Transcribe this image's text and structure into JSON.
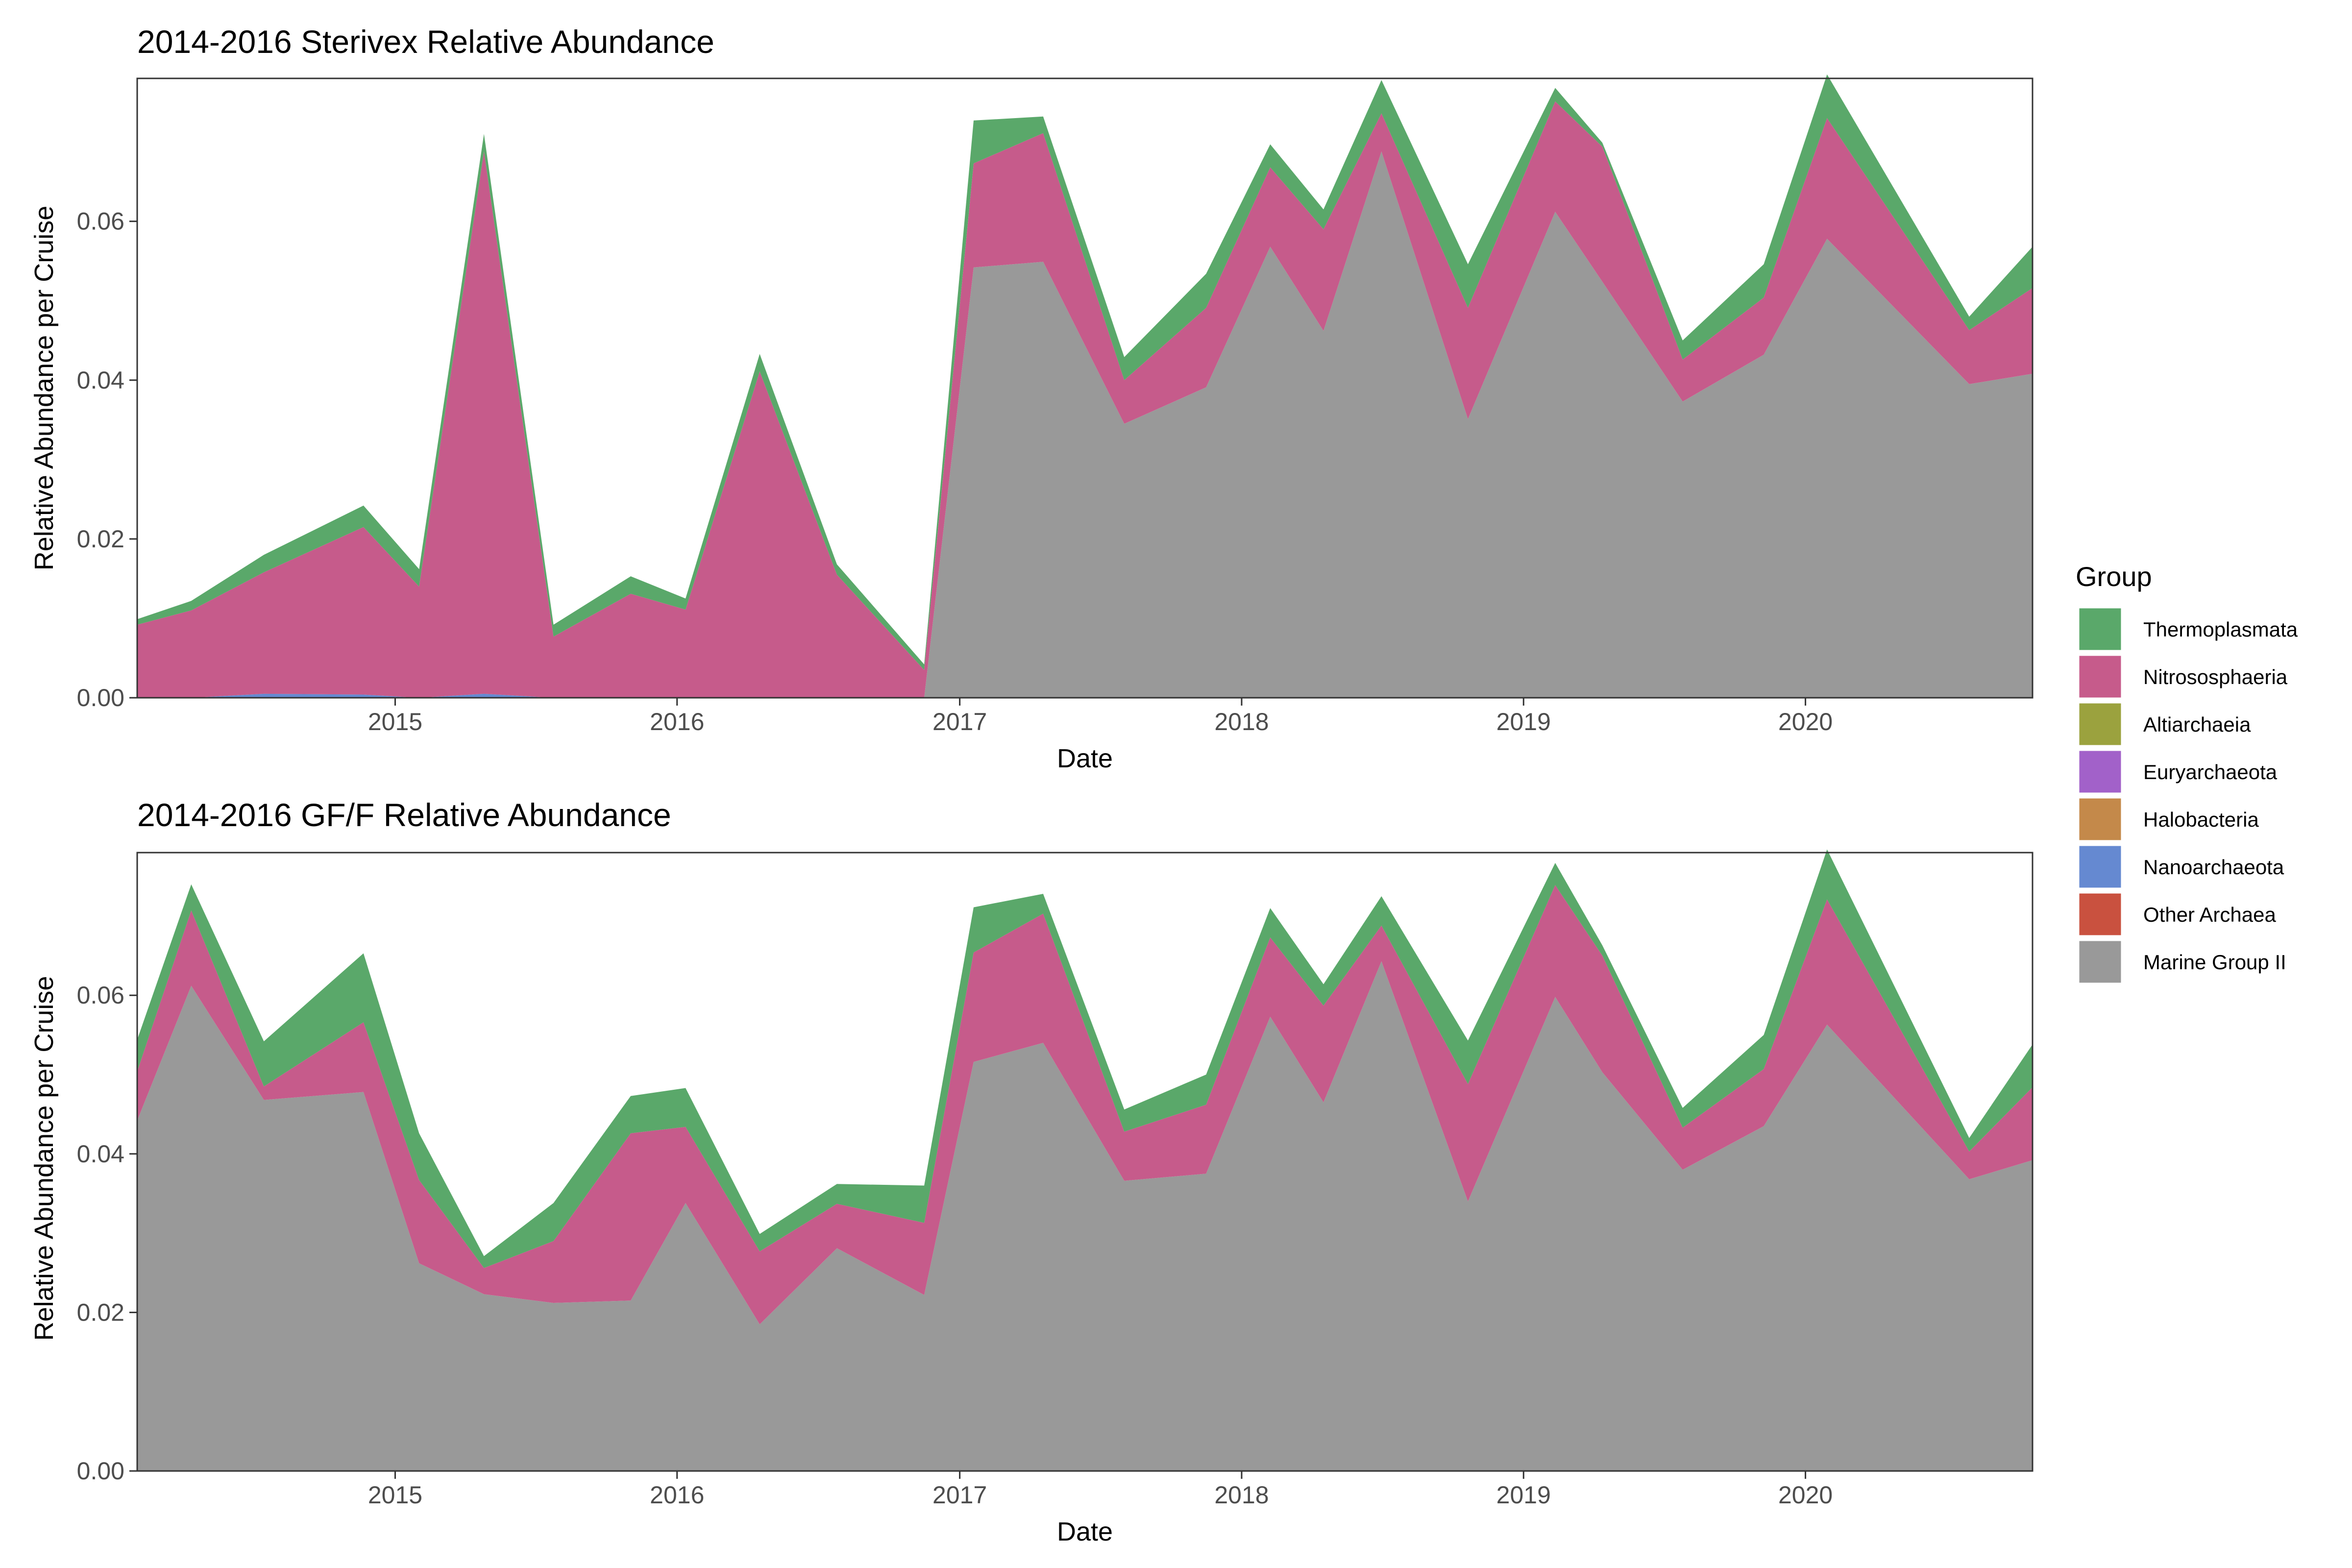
{
  "chart_data": [
    {
      "type": "area",
      "title": "2014-2016 Sterivex Relative Abundance",
      "xlabel": "Date",
      "ylabel": "Relative Abundance per Cruise",
      "xlim": [
        "2014-02-01",
        "2020-10-21"
      ],
      "ylim": [
        0,
        0.078
      ],
      "x_ticks": [
        "2015-01-01",
        "2016-01-01",
        "2017-01-01",
        "2018-01-01",
        "2019-01-01",
        "2020-01-01"
      ],
      "x_tick_labels": [
        "2015",
        "2016",
        "2017",
        "2018",
        "2019",
        "2020"
      ],
      "y_ticks": [
        0,
        0.02,
        0.04,
        0.06
      ],
      "y_tick_labels": [
        "0.00",
        "0.02",
        "0.04",
        "0.06"
      ],
      "stacked": true,
      "grid": false,
      "x": [
        "2014-02-01",
        "2014-04-12",
        "2014-07-15",
        "2014-11-21",
        "2015-02-01",
        "2015-04-26",
        "2015-07-25",
        "2015-11-02",
        "2016-01-12",
        "2016-04-17",
        "2016-07-26",
        "2016-11-16",
        "2017-01-19",
        "2017-04-19",
        "2017-08-02",
        "2017-11-16",
        "2018-02-07",
        "2018-04-17",
        "2018-07-01",
        "2018-10-21",
        "2019-02-11",
        "2019-04-13",
        "2019-07-26",
        "2019-11-08",
        "2020-01-29",
        "2020-07-31",
        "2020-10-21"
      ],
      "series": [
        {
          "name": "Marine Group II",
          "values": [
            0,
            0,
            0,
            0,
            0,
            0,
            0,
            0,
            0,
            0,
            0,
            0,
            0.0542,
            0.0549,
            0.0345,
            0.0391,
            0.0568,
            0.0462,
            0.0688,
            0.0351,
            0.0612,
            0.0524,
            0.0373,
            0.0432,
            0.0578,
            0.0395,
            0.0408
          ]
        },
        {
          "name": "Other Archaea",
          "values": [
            0,
            0,
            0,
            0,
            0,
            0,
            0,
            0,
            0,
            0,
            0,
            0,
            0,
            0,
            0,
            0,
            0,
            0,
            0,
            0,
            0,
            0,
            0,
            0,
            0,
            0,
            0
          ]
        },
        {
          "name": "Nanoarchaeota",
          "values": [
            0,
            0,
            0.0005,
            0.0004,
            0,
            0.0005,
            0,
            0,
            0,
            0,
            0,
            0,
            0,
            0,
            0,
            0,
            0,
            0,
            0,
            0,
            0,
            0,
            0,
            0,
            0,
            0,
            0
          ]
        },
        {
          "name": "Halobacteria",
          "values": [
            0,
            0,
            0,
            0,
            0,
            0,
            0,
            0,
            0,
            0,
            0,
            0,
            0,
            0,
            0,
            0,
            0,
            0,
            0,
            0,
            0,
            0,
            0,
            0,
            0,
            0,
            0
          ]
        },
        {
          "name": "Euryarchaeota",
          "values": [
            0,
            0,
            0,
            0,
            0,
            0,
            0,
            0,
            0,
            0,
            0,
            0,
            0,
            0,
            0,
            0,
            0,
            0,
            0,
            0,
            0,
            0,
            0,
            0,
            0,
            0,
            0
          ]
        },
        {
          "name": "Altiarchaeia",
          "values": [
            0,
            0,
            0,
            0,
            0,
            0,
            0,
            0,
            0,
            0,
            0,
            0,
            0,
            0,
            0,
            0,
            0,
            0,
            0,
            0,
            0,
            0,
            0,
            0,
            0,
            0,
            0
          ]
        },
        {
          "name": "Nitrososphaeria",
          "values": [
            0.0092,
            0.011,
            0.0153,
            0.0211,
            0.014,
            0.0683,
            0.0077,
            0.0131,
            0.0111,
            0.0411,
            0.0155,
            0.0035,
            0.0131,
            0.0162,
            0.0055,
            0.01,
            0.01,
            0.0128,
            0.0048,
            0.014,
            0.0139,
            0.017,
            0.0053,
            0.0072,
            0.0152,
            0.0068,
            0.0108
          ]
        },
        {
          "name": "Thermoplastmata",
          "values": [
            0.0007,
            0.0012,
            0.0022,
            0.0027,
            0.0022,
            0.0022,
            0.0015,
            0.0022,
            0.0014,
            0.0022,
            0.0013,
            0.0007,
            0.0054,
            0.0021,
            0.0029,
            0.0043,
            0.0029,
            0.0025,
            0.0042,
            0.0055,
            0.0017,
            0.0005,
            0.0024,
            0.0042,
            0.0055,
            0.0017,
            0.0052
          ]
        }
      ]
    },
    {
      "type": "area",
      "title": "2014-2016 GF/F Relative Abundance",
      "xlabel": "Date",
      "ylabel": "Relative Abundance per Cruise",
      "xlim": [
        "2014-02-01",
        "2020-10-21"
      ],
      "ylim": [
        0,
        0.078
      ],
      "x_ticks": [
        "2015-01-01",
        "2016-01-01",
        "2017-01-01",
        "2018-01-01",
        "2019-01-01",
        "2020-01-01"
      ],
      "x_tick_labels": [
        "2015",
        "2016",
        "2017",
        "2018",
        "2019",
        "2020"
      ],
      "y_ticks": [
        0,
        0.02,
        0.04,
        0.06
      ],
      "y_tick_labels": [
        "0.00",
        "0.02",
        "0.04",
        "0.06"
      ],
      "stacked": true,
      "grid": false,
      "x": [
        "2014-02-01",
        "2014-04-12",
        "2014-07-15",
        "2014-11-21",
        "2015-02-01",
        "2015-04-26",
        "2015-07-25",
        "2015-11-02",
        "2016-01-12",
        "2016-04-17",
        "2016-07-26",
        "2016-11-16",
        "2017-01-19",
        "2017-04-19",
        "2017-08-02",
        "2017-11-16",
        "2018-02-07",
        "2018-04-17",
        "2018-07-01",
        "2018-10-21",
        "2019-02-11",
        "2019-04-13",
        "2019-07-26",
        "2019-11-08",
        "2020-01-29",
        "2020-07-31",
        "2020-10-21"
      ],
      "series": [
        {
          "name": "Marine Group II",
          "values": [
            0.0442,
            0.0612,
            0.0468,
            0.0478,
            0.0262,
            0.0223,
            0.0212,
            0.0215,
            0.0338,
            0.0185,
            0.0281,
            0.0222,
            0.0516,
            0.054,
            0.0366,
            0.0375,
            0.0573,
            0.0465,
            0.0643,
            0.034,
            0.0598,
            0.0503,
            0.038,
            0.0435,
            0.0563,
            0.0368,
            0.0392
          ]
        },
        {
          "name": "Other Archaea",
          "values": [
            0,
            0,
            0,
            0,
            0,
            0,
            0,
            0,
            0,
            0,
            0,
            0,
            0,
            0,
            0,
            0,
            0,
            0,
            0,
            0,
            0,
            0,
            0,
            0,
            0,
            0,
            0
          ]
        },
        {
          "name": "Nanoarchaeota",
          "values": [
            0,
            0,
            0,
            0,
            0,
            0,
            0,
            0,
            0,
            0,
            0,
            0,
            0,
            0,
            0,
            0,
            0,
            0,
            0,
            0,
            0,
            0,
            0,
            0,
            0,
            0,
            0
          ]
        },
        {
          "name": "Halobacteria",
          "values": [
            0,
            0,
            0,
            0,
            0,
            0,
            0,
            0,
            0,
            0,
            0,
            0,
            0,
            0,
            0,
            0,
            0,
            0,
            0,
            0,
            0,
            0,
            0,
            0,
            0,
            0,
            0
          ]
        },
        {
          "name": "Euryarchaeota",
          "values": [
            0,
            0,
            0,
            0,
            0,
            0,
            0,
            0,
            0,
            0,
            0,
            0,
            0,
            0,
            0,
            0,
            0,
            0,
            0,
            0,
            0,
            0,
            0,
            0,
            0,
            0,
            0
          ]
        },
        {
          "name": "Altiarchaeia",
          "values": [
            0,
            0,
            0,
            0,
            0,
            0,
            0,
            0,
            0,
            0,
            0,
            0,
            0,
            0,
            0,
            0,
            0,
            0,
            0,
            0,
            0,
            0,
            0,
            0,
            0,
            0,
            0
          ]
        },
        {
          "name": "Nitrososphaeria",
          "values": [
            0.0062,
            0.0095,
            0.0017,
            0.0088,
            0.0105,
            0.0033,
            0.0078,
            0.0211,
            0.0096,
            0.0092,
            0.0056,
            0.0091,
            0.0138,
            0.0163,
            0.0062,
            0.0087,
            0.01,
            0.0122,
            0.0045,
            0.0148,
            0.0141,
            0.0147,
            0.0053,
            0.0072,
            0.0158,
            0.0035,
            0.0092
          ]
        },
        {
          "name": "Thermoplastmata",
          "values": [
            0.004,
            0.0033,
            0.0057,
            0.0087,
            0.0059,
            0.0015,
            0.0048,
            0.0047,
            0.0049,
            0.0022,
            0.0025,
            0.0047,
            0.0057,
            0.0025,
            0.0028,
            0.0038,
            0.0037,
            0.0027,
            0.0037,
            0.0055,
            0.0028,
            0.0013,
            0.0025,
            0.0043,
            0.0063,
            0.0017,
            0.0054
          ]
        }
      ]
    }
  ],
  "legend": {
    "title": "Group",
    "position": "right",
    "items": [
      {
        "label": "Thermoplasmata",
        "color": "#5AA86A",
        "series": "Thermoplastmata"
      },
      {
        "label": "Nitrososphaeria",
        "color": "#C65B8B",
        "series": "Nitrososphaeria"
      },
      {
        "label": "Altiarchaeia",
        "color": "#9BA23E",
        "series": "Altiarchaeia"
      },
      {
        "label": "Euryarchaeota",
        "color": "#A261C9",
        "series": "Euryarchaeota"
      },
      {
        "label": "Halobacteria",
        "color": "#C4894A",
        "series": "Halobacteria"
      },
      {
        "label": "Nanoarchaeota",
        "color": "#6589D1",
        "series": "Nanoarchaeota"
      },
      {
        "label": "Other Archaea",
        "color": "#C9513F",
        "series": "Other Archaea"
      },
      {
        "label": "Marine Group II",
        "color": "#999999",
        "series": "Marine Group II"
      }
    ]
  }
}
